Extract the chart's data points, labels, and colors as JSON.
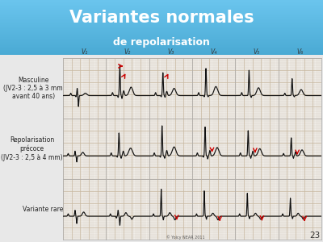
{
  "title_line1": "Variantes normales",
  "title_line2": "de repolarisation",
  "title_bg_top": "#6bc5ee",
  "title_bg_bottom": "#4aaad4",
  "title_color": "#ffffff",
  "title_line2_color": "#ffffff",
  "slide_bg_color": "#e8e8e8",
  "ecg_bg_color": "#f0ede8",
  "row_labels": [
    "Masculine\n(JV2-3 : 2,5 à 3 mm\navant 40 ans)",
    "Repolarisation\nprécoce\n(JV2-3 : 2,5 à 4 mm)",
    "Variante rare"
  ],
  "col_labels": [
    "V₁",
    "V₂",
    "V₃",
    "V₄",
    "V₅",
    "V₆"
  ],
  "grid_minor_color": "#d8cfc0",
  "grid_major_color": "#c8b8a0",
  "ecg_color": "#111111",
  "arrow_color": "#cc0000",
  "page_number": "23",
  "copyright": "© Yoicy NEAR 2011",
  "title_fontsize": 15,
  "subtitle_fontsize": 9,
  "label_fontsize": 5.5
}
